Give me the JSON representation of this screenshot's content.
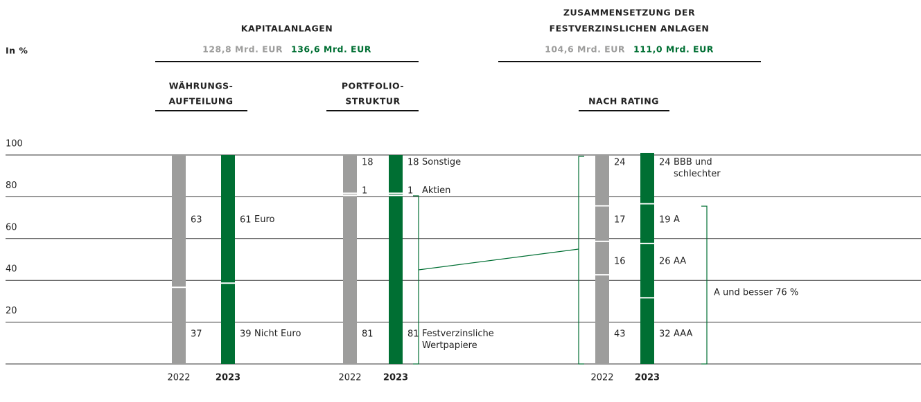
{
  "header": {
    "unit": "In %"
  },
  "sections": [
    {
      "title": [
        "KAPITALANLAGEN"
      ],
      "totals": [
        "128,8 Mrd. EUR",
        "136,6 Mrd. EUR"
      ]
    },
    {
      "title": [
        "ZUSAMMENSETZUNG DER",
        "FESTVERZINSLICHEN ANLAGEN"
      ],
      "totals": [
        "104,6 Mrd. EUR",
        "111,0 Mrd. EUR"
      ]
    }
  ],
  "chart_data": [
    {
      "type": "bar",
      "stacked": true,
      "title": [
        "WÄHRUNGS-",
        "AUFTEILUNG"
      ],
      "categories": [
        "2022",
        "2023"
      ],
      "colors": [
        "#9d9d9c",
        "#006f33"
      ],
      "ylim": [
        0,
        100
      ],
      "yticks": [
        20,
        40,
        60,
        80,
        100
      ],
      "series": [
        {
          "name": "Nicht Euro",
          "values": [
            37,
            39
          ]
        },
        {
          "name": "Euro",
          "values": [
            63,
            61
          ]
        }
      ]
    },
    {
      "type": "bar",
      "stacked": true,
      "title": [
        "PORTFOLIO-",
        "STRUKTUR"
      ],
      "categories": [
        "2022",
        "2023"
      ],
      "colors": [
        "#9d9d9c",
        "#006f33"
      ],
      "series": [
        {
          "name": "Festverzinsliche Wertpapiere",
          "values": [
            81,
            81
          ]
        },
        {
          "name": "Aktien",
          "values": [
            1,
            1
          ]
        },
        {
          "name": "Sonstige",
          "values": [
            18,
            18
          ]
        }
      ]
    },
    {
      "type": "bar",
      "stacked": true,
      "title": [
        "NACH RATING"
      ],
      "categories": [
        "2022",
        "2023"
      ],
      "colors": [
        "#9d9d9c",
        "#006f33"
      ],
      "annotation": "A und besser 76 %",
      "series": [
        {
          "name": "AAA",
          "values": [
            43,
            32
          ]
        },
        {
          "name": "AA",
          "values": [
            16,
            26
          ]
        },
        {
          "name": "A",
          "values": [
            17,
            19
          ]
        },
        {
          "name": "BBB und schlechter",
          "values": [
            24,
            24
          ]
        }
      ]
    }
  ]
}
